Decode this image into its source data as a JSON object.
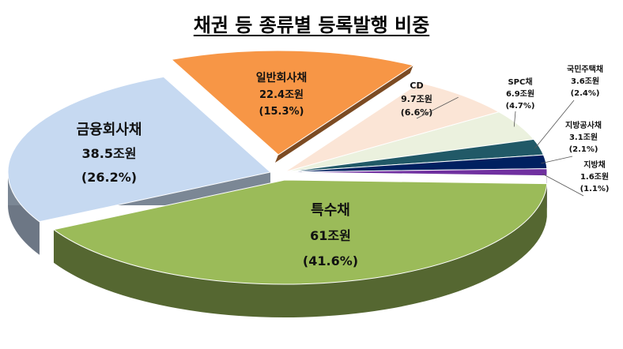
{
  "chart_data": {
    "type": "pie",
    "title": "채권 등 종류별 등록발행 비중",
    "slices": [
      {
        "name": "특수채",
        "value": 61,
        "value_text": "61조원",
        "percent_text": "(41.6%)",
        "color": "#9BBB59"
      },
      {
        "name": "금융회사채",
        "value": 38.5,
        "value_text": "38.5조원",
        "percent_text": "(26.2%)",
        "color": "#C6D9F1"
      },
      {
        "name": "일반회사채",
        "value": 22.4,
        "value_text": "22.4조원",
        "percent_text": "(15.3%)",
        "color": "#F79646"
      },
      {
        "name": "CD",
        "value": 9.7,
        "value_text": "9.7조원",
        "percent_text": "(6.6%)",
        "color": "#FBE5D6"
      },
      {
        "name": "SPC채",
        "value": 6.9,
        "value_text": "6.9조원",
        "percent_text": "(4.7%)",
        "color": "#EBF1DE"
      },
      {
        "name": "국민주택채",
        "value": 3.6,
        "value_text": "3.6조원",
        "percent_text": "(2.4%)",
        "color": "#215967"
      },
      {
        "name": "지방공사채",
        "value": 3.1,
        "value_text": "3.1조원",
        "percent_text": "(2.1%)",
        "color": "#002060"
      },
      {
        "name": "지방채",
        "value": 1.6,
        "value_text": "1.6조원",
        "percent_text": "(1.1%)",
        "color": "#7030A0"
      }
    ]
  }
}
